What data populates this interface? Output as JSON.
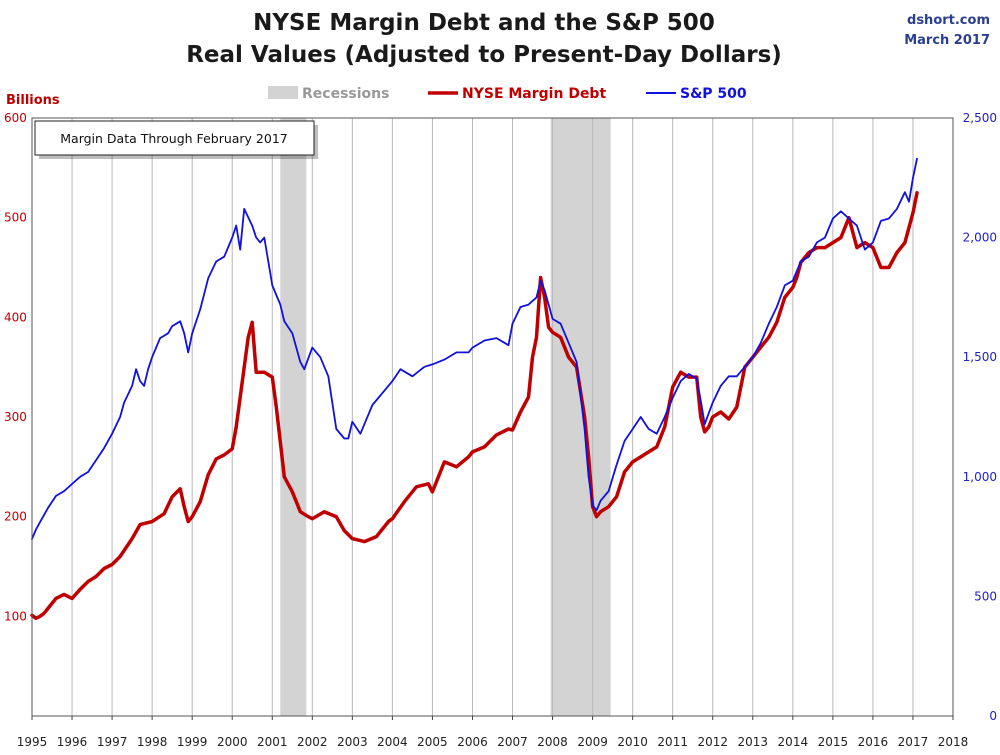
{
  "credit": {
    "site": "dshort.com",
    "date": "March 2017"
  },
  "chart_data": {
    "type": "line",
    "title": "NYSE Margin Debt and the S&P 500",
    "subtitle": "Real Values (Adjusted to Present-Day Dollars)",
    "left_axis_title": "Billions",
    "annotation": "Margin Data Through February 2017",
    "legend": {
      "placement": "top",
      "recessions": "Recessions"
    },
    "x_range": [
      1995,
      2018
    ],
    "x_ticks": [
      "1995",
      "1996",
      "1997",
      "1998",
      "1999",
      "2000",
      "2001",
      "2002",
      "2003",
      "2004",
      "2005",
      "2006",
      "2007",
      "2008",
      "2009",
      "2010",
      "2011",
      "2012",
      "2013",
      "2014",
      "2015",
      "2016",
      "2017",
      "2018"
    ],
    "left_axis": {
      "range": [
        0,
        600
      ],
      "ticks": [
        "100",
        "200",
        "300",
        "400",
        "500",
        "600"
      ],
      "tick_values": [
        100,
        200,
        300,
        400,
        500,
        600
      ]
    },
    "right_axis": {
      "range": [
        0,
        2500
      ],
      "ticks": [
        "0",
        "500",
        "1,000",
        "1,500",
        "2,000",
        "2,500"
      ],
      "tick_values": [
        0,
        500,
        1000,
        1500,
        2000,
        2500
      ]
    },
    "grid": "vertical",
    "colors": {
      "margin": "#c00000",
      "sp500": "#1010e0",
      "recession": "#d3d3d3",
      "left_axis": "#c00000",
      "right_axis": "#2020cc"
    },
    "recessions": [
      {
        "start": 2001.2,
        "end": 2001.85
      },
      {
        "start": 2007.95,
        "end": 2009.45
      }
    ],
    "series": [
      {
        "name": "NYSE Margin Debt",
        "axis": "left",
        "x": [
          1995.0,
          1995.1,
          1995.2,
          1995.3,
          1995.4,
          1995.6,
          1995.8,
          1996.0,
          1996.2,
          1996.4,
          1996.6,
          1996.8,
          1997.0,
          1997.2,
          1997.5,
          1997.7,
          1998.0,
          1998.3,
          1998.5,
          1998.7,
          1998.8,
          1998.9,
          1999.0,
          1999.2,
          1999.4,
          1999.6,
          1999.8,
          2000.0,
          2000.1,
          2000.2,
          2000.3,
          2000.4,
          2000.5,
          2000.6,
          2000.8,
          2001.0,
          2001.1,
          2001.3,
          2001.5,
          2001.7,
          2001.9,
          2002.0,
          2002.3,
          2002.6,
          2002.8,
          2003.0,
          2003.3,
          2003.6,
          2003.9,
          2004.0,
          2004.3,
          2004.6,
          2004.9,
          2005.0,
          2005.3,
          2005.6,
          2005.9,
          2006.0,
          2006.3,
          2006.6,
          2006.9,
          2007.0,
          2007.2,
          2007.4,
          2007.5,
          2007.6,
          2007.7,
          2007.8,
          2007.9,
          2008.0,
          2008.2,
          2008.4,
          2008.6,
          2008.8,
          2008.9,
          2009.0,
          2009.1,
          2009.2,
          2009.4,
          2009.6,
          2009.8,
          2010.0,
          2010.2,
          2010.4,
          2010.6,
          2010.8,
          2011.0,
          2011.2,
          2011.4,
          2011.6,
          2011.7,
          2011.8,
          2011.9,
          2012.0,
          2012.2,
          2012.4,
          2012.6,
          2012.8,
          2013.0,
          2013.2,
          2013.4,
          2013.6,
          2013.8,
          2014.0,
          2014.1,
          2014.2,
          2014.4,
          2014.6,
          2014.8,
          2015.0,
          2015.2,
          2015.4,
          2015.6,
          2015.8,
          2016.0,
          2016.2,
          2016.4,
          2016.6,
          2016.8,
          2017.0,
          2017.1
        ],
        "values": [
          101,
          98,
          100,
          103,
          108,
          118,
          122,
          118,
          127,
          135,
          140,
          148,
          152,
          160,
          178,
          192,
          195,
          203,
          220,
          228,
          210,
          195,
          200,
          215,
          242,
          258,
          262,
          268,
          290,
          320,
          350,
          380,
          395,
          345,
          345,
          340,
          310,
          240,
          225,
          205,
          200,
          198,
          205,
          200,
          186,
          178,
          175,
          180,
          195,
          198,
          215,
          230,
          233,
          225,
          255,
          250,
          260,
          265,
          270,
          282,
          288,
          287,
          305,
          320,
          360,
          380,
          440,
          420,
          390,
          385,
          380,
          360,
          350,
          300,
          260,
          210,
          200,
          205,
          210,
          220,
          245,
          255,
          260,
          265,
          270,
          290,
          330,
          345,
          340,
          340,
          300,
          285,
          290,
          300,
          305,
          298,
          310,
          350,
          360,
          370,
          380,
          395,
          420,
          430,
          440,
          455,
          465,
          470,
          470,
          475,
          480,
          500,
          470,
          475,
          470,
          450,
          450,
          465,
          475,
          505,
          525
        ]
      },
      {
        "name": "S&P 500",
        "axis": "right",
        "x": [
          1995.0,
          1995.1,
          1995.2,
          1995.4,
          1995.6,
          1995.8,
          1996.0,
          1996.2,
          1996.4,
          1996.6,
          1996.8,
          1997.0,
          1997.2,
          1997.3,
          1997.5,
          1997.6,
          1997.7,
          1997.8,
          1997.9,
          1998.0,
          1998.2,
          1998.4,
          1998.5,
          1998.7,
          1998.8,
          1998.9,
          1999.0,
          1999.2,
          1999.4,
          1999.6,
          1999.8,
          2000.0,
          2000.1,
          2000.2,
          2000.3,
          2000.5,
          2000.6,
          2000.7,
          2000.8,
          2001.0,
          2001.2,
          2001.3,
          2001.5,
          2001.7,
          2001.8,
          2002.0,
          2002.2,
          2002.4,
          2002.6,
          2002.8,
          2002.9,
          2003.0,
          2003.2,
          2003.5,
          2003.8,
          2004.0,
          2004.2,
          2004.5,
          2004.8,
          2005.0,
          2005.3,
          2005.6,
          2005.9,
          2006.0,
          2006.3,
          2006.6,
          2006.9,
          2007.0,
          2007.2,
          2007.4,
          2007.6,
          2007.7,
          2007.8,
          2007.9,
          2008.0,
          2008.2,
          2008.4,
          2008.6,
          2008.8,
          2008.9,
          2009.0,
          2009.1,
          2009.2,
          2009.4,
          2009.6,
          2009.8,
          2010.0,
          2010.2,
          2010.4,
          2010.6,
          2010.8,
          2011.0,
          2011.2,
          2011.4,
          2011.6,
          2011.7,
          2011.8,
          2012.0,
          2012.2,
          2012.4,
          2012.6,
          2012.8,
          2013.0,
          2013.2,
          2013.4,
          2013.6,
          2013.8,
          2014.0,
          2014.2,
          2014.4,
          2014.6,
          2014.8,
          2015.0,
          2015.2,
          2015.4,
          2015.6,
          2015.7,
          2015.8,
          2016.0,
          2016.2,
          2016.4,
          2016.6,
          2016.8,
          2016.9,
          2017.0,
          2017.1
        ],
        "values": [
          740,
          780,
          810,
          870,
          920,
          940,
          970,
          1000,
          1020,
          1070,
          1120,
          1180,
          1250,
          1310,
          1380,
          1450,
          1400,
          1380,
          1450,
          1500,
          1580,
          1600,
          1630,
          1650,
          1600,
          1520,
          1600,
          1700,
          1830,
          1900,
          1920,
          2000,
          2050,
          1950,
          2120,
          2050,
          2000,
          1980,
          2000,
          1800,
          1720,
          1650,
          1600,
          1480,
          1450,
          1540,
          1500,
          1420,
          1200,
          1160,
          1160,
          1230,
          1180,
          1300,
          1360,
          1400,
          1450,
          1420,
          1460,
          1470,
          1490,
          1520,
          1520,
          1540,
          1570,
          1580,
          1550,
          1640,
          1710,
          1720,
          1750,
          1820,
          1780,
          1720,
          1660,
          1640,
          1560,
          1480,
          1200,
          1000,
          880,
          860,
          900,
          940,
          1050,
          1150,
          1200,
          1250,
          1200,
          1180,
          1250,
          1330,
          1400,
          1430,
          1410,
          1320,
          1220,
          1310,
          1380,
          1420,
          1420,
          1460,
          1500,
          1560,
          1640,
          1710,
          1800,
          1820,
          1900,
          1920,
          1980,
          2000,
          2080,
          2110,
          2080,
          2050,
          2000,
          1950,
          1980,
          2070,
          2080,
          2120,
          2190,
          2150,
          2250,
          2330
        ]
      }
    ]
  }
}
